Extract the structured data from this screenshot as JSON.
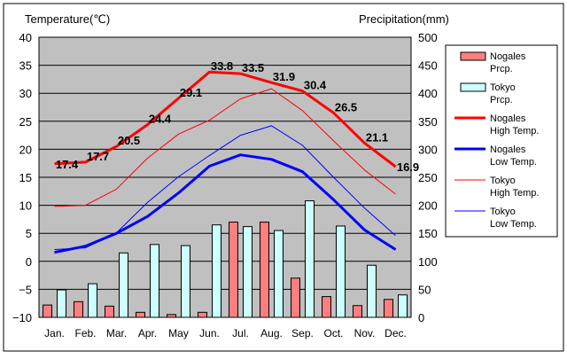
{
  "chart_data": {
    "type": "bar",
    "left_axis_title": "Temperature(℃)",
    "right_axis_title": "Precipitation(mm)",
    "categories": [
      "Jan.",
      "Feb.",
      "Mar.",
      "Apr.",
      "May",
      "Jun.",
      "Jul.",
      "Aug.",
      "Sep.",
      "Oct.",
      "Nov.",
      "Dec."
    ],
    "temperature_axis": {
      "min": -10,
      "max": 40,
      "ticks": [
        -10,
        -5,
        0,
        5,
        10,
        15,
        20,
        25,
        30,
        35,
        40
      ]
    },
    "precipitation_axis": {
      "min": 0,
      "max": 500,
      "ticks": [
        0,
        50,
        100,
        150,
        200,
        250,
        300,
        350,
        400,
        450,
        500
      ]
    },
    "grid": true,
    "legend_position": "right",
    "bar_series": [
      {
        "name": "Nogales\nPrcp.",
        "color": "#FF7F7F",
        "values": [
          22,
          28,
          20,
          9,
          5,
          9,
          170,
          170,
          70,
          37,
          21,
          32
        ]
      },
      {
        "name": "Tokyo\nPrcp.",
        "color": "#CCFFFF",
        "values": [
          49,
          60,
          115,
          130,
          128,
          165,
          162,
          155,
          208,
          163,
          93,
          40
        ]
      }
    ],
    "line_series": [
      {
        "name": "Nogales\nHigh Temp.",
        "color": "#FF0000",
        "width": 3,
        "values": [
          17.4,
          17.7,
          20.5,
          24.4,
          29.1,
          33.8,
          33.5,
          31.9,
          30.4,
          26.5,
          21.1,
          16.9
        ],
        "labels": [
          "17.4",
          "17.7",
          "20.5",
          "24.4",
          "29.1",
          "33.8",
          "33.5",
          "31.9",
          "30.4",
          "26.5",
          "21.1",
          "16.9"
        ]
      },
      {
        "name": "Nogales\nLow Temp.",
        "color": "#0000FF",
        "width": 3,
        "values": [
          1.6,
          2.7,
          5.0,
          8.0,
          12.2,
          17.0,
          19.0,
          18.2,
          16.0,
          11.0,
          5.6,
          2.1
        ]
      },
      {
        "name": "Tokyo\nHigh Temp.",
        "color": "#FF0000",
        "width": 1,
        "values": [
          9.8,
          10.0,
          12.9,
          18.4,
          22.7,
          25.2,
          29.0,
          30.8,
          26.9,
          21.5,
          16.3,
          12.0
        ]
      },
      {
        "name": "Tokyo\nLow Temp.",
        "color": "#0000FF",
        "width": 1,
        "values": [
          2.1,
          2.4,
          5.1,
          10.5,
          15.1,
          18.9,
          22.5,
          24.2,
          20.7,
          15.0,
          9.5,
          4.6
        ]
      }
    ]
  }
}
